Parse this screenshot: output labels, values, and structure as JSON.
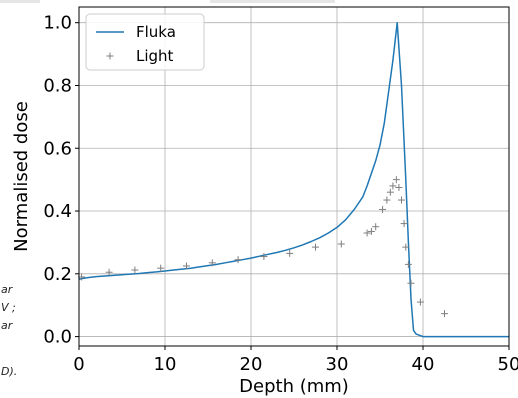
{
  "background_fragments": [
    "ar",
    "V ;",
    "ar",
    "D)."
  ],
  "chart_data": {
    "type": "line",
    "title": "",
    "xlabel": "Depth (mm)",
    "ylabel": "Normalised dose",
    "xlim": [
      0,
      50
    ],
    "ylim": [
      -0.03,
      1.05
    ],
    "xticks": [
      0,
      10,
      20,
      30,
      40,
      50
    ],
    "xtick_labels": [
      "0",
      "10",
      "20",
      "30",
      "40",
      "50"
    ],
    "yticks": [
      0.0,
      0.2,
      0.4,
      0.6,
      0.8,
      1.0
    ],
    "ytick_labels": [
      "0.0",
      "0.2",
      "0.4",
      "0.6",
      "0.8",
      "1.0"
    ],
    "grid": true,
    "legend_position": "upper-left",
    "series": [
      {
        "name": "Fluka",
        "style": "line",
        "color": "#1f77b4",
        "x": [
          0,
          1,
          2,
          3,
          4,
          5,
          6,
          7,
          8,
          9,
          10,
          11,
          12,
          13,
          14,
          15,
          16,
          17,
          18,
          19,
          20,
          21,
          22,
          23,
          24,
          25,
          26,
          27,
          28,
          29,
          30,
          31,
          32,
          33,
          33.5,
          34,
          34.5,
          35,
          35.5,
          36,
          36.5,
          37,
          37.5,
          38,
          38.3,
          38.6,
          38.9,
          39.2,
          40,
          50
        ],
        "y": [
          0.183,
          0.188,
          0.191,
          0.193,
          0.195,
          0.197,
          0.199,
          0.201,
          0.204,
          0.206,
          0.209,
          0.212,
          0.215,
          0.218,
          0.222,
          0.226,
          0.23,
          0.235,
          0.24,
          0.245,
          0.25,
          0.256,
          0.262,
          0.268,
          0.275,
          0.283,
          0.292,
          0.303,
          0.315,
          0.33,
          0.348,
          0.372,
          0.405,
          0.445,
          0.48,
          0.52,
          0.56,
          0.61,
          0.68,
          0.78,
          0.88,
          1.0,
          0.8,
          0.5,
          0.3,
          0.12,
          0.02,
          0.008,
          0.0,
          0.0
        ]
      },
      {
        "name": "Light",
        "style": "markers",
        "marker": "+",
        "color": "#7f7f7f",
        "x": [
          0.3,
          3.5,
          6.5,
          9.5,
          12.5,
          15.5,
          18.5,
          21.5,
          24.5,
          27.5,
          30.5,
          33.5,
          34.0,
          34.5,
          35.3,
          35.8,
          36.2,
          36.5,
          36.9,
          37.2,
          37.5,
          37.8,
          38.0,
          38.3,
          38.6,
          39.7,
          42.5
        ],
        "y": [
          0.19,
          0.205,
          0.212,
          0.218,
          0.225,
          0.235,
          0.245,
          0.255,
          0.265,
          0.285,
          0.295,
          0.33,
          0.335,
          0.35,
          0.405,
          0.435,
          0.46,
          0.48,
          0.5,
          0.475,
          0.435,
          0.36,
          0.285,
          0.23,
          0.17,
          0.11,
          0.073
        ]
      }
    ]
  }
}
